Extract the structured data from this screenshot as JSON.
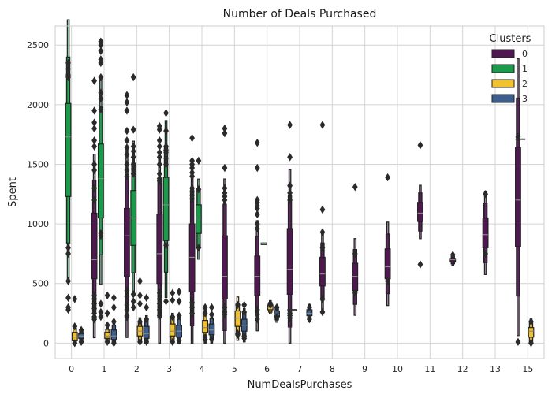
{
  "chart_data": {
    "type": "boxen",
    "title": "Number of Deals Purchased",
    "xlabel": "NumDealsPurchases",
    "ylabel": "Spent",
    "categories": [
      "0",
      "1",
      "2",
      "3",
      "4",
      "5",
      "6",
      "7",
      "8",
      "9",
      "10",
      "11",
      "12",
      "13",
      "15"
    ],
    "ylim": [
      -130,
      2660
    ],
    "yticks": [
      0,
      500,
      1000,
      1500,
      2000,
      2500
    ],
    "grid": true,
    "legend": {
      "title": "Clusters",
      "placement": "top-right"
    },
    "series": [
      {
        "name": "0",
        "color": "#4f1850",
        "boxes": [
          {
            "x": "1",
            "q1": 540,
            "median": 700,
            "q3": 1090,
            "outliers": [
              2200,
              1950,
              1850,
              1800,
              1700,
              1650,
              1500,
              1450,
              1300,
              1200,
              400,
              370,
              330,
              290,
              250,
              220,
              200
            ]
          },
          {
            "x": "2",
            "q1": 560,
            "median": 900,
            "q3": 1130,
            "outliers": [
              2080,
              2020,
              1950,
              1780,
              1700,
              1640,
              1580,
              1500,
              1450,
              1400,
              440,
              390,
              320,
              280,
              230,
              220
            ]
          },
          {
            "x": "3",
            "q1": 500,
            "median": 750,
            "q3": 1080,
            "outliers": [
              1820,
              1790,
              1700,
              1650,
              1600,
              1560,
              1500,
              1420,
              1380,
              1360,
              420,
              370,
              330,
              280,
              230
            ]
          },
          {
            "x": "4",
            "q1": 430,
            "median": 720,
            "q3": 1000,
            "outliers": [
              1720,
              1530,
              1500,
              1470,
              1430,
              1400,
              1300,
              1270,
              1240,
              1210,
              340,
              300,
              250
            ]
          },
          {
            "x": "5",
            "q1": 370,
            "median": 560,
            "q3": 900,
            "outliers": [
              1800,
              1760,
              1470,
              1300,
              1260,
              1230,
              1200,
              300,
              260,
              240
            ]
          },
          {
            "x": "6",
            "q1": 400,
            "median": 560,
            "q3": 730,
            "outliers": [
              1680,
              1470,
              1200,
              1180,
              1150,
              1130,
              1080,
              1000,
              960,
              280,
              240,
              200
            ]
          },
          {
            "x": "7",
            "q1": 410,
            "median": 620,
            "q3": 960,
            "outliers": [
              1830,
              1560,
              1320,
              1260,
              1200,
              250,
              230,
              210
            ]
          },
          {
            "x": "8",
            "q1": 480,
            "median": 580,
            "q3": 720,
            "outliers": [
              1830,
              1120,
              930,
              800,
              370,
              260
            ]
          },
          {
            "x": "9",
            "q1": 440,
            "median": 560,
            "q3": 670,
            "outliers": [
              1310,
              750,
              420
            ]
          },
          {
            "x": "10",
            "q1": 540,
            "median": 640,
            "q3": 790,
            "outliers": [
              1390,
              520
            ]
          },
          {
            "x": "11",
            "q1": 1020,
            "median": 1090,
            "q3": 1180,
            "outliers": [
              1660,
              660
            ]
          },
          {
            "x": "12",
            "q1": 680,
            "median": 700,
            "q3": 710,
            "outliers": [
              740
            ]
          },
          {
            "x": "13",
            "q1": 800,
            "median": 910,
            "q3": 1050,
            "outliers": [
              1250,
              750
            ]
          },
          {
            "x": "15",
            "q1": 810,
            "median": 1200,
            "q3": 1640,
            "outliers": [
              1730,
              10
            ]
          }
        ]
      },
      {
        "name": "1",
        "color": "#1a9b4a",
        "boxes": [
          {
            "x": "0",
            "q1": 1230,
            "median": 1730,
            "q3": 2010,
            "outliers": [
              2350,
              2300,
              2250,
              2230,
              800,
              750,
              520,
              380,
              300,
              280
            ]
          },
          {
            "x": "1",
            "q1": 1050,
            "median": 1380,
            "q3": 1670,
            "outliers": [
              2530,
              2500,
              2450,
              2380,
              2350,
              2230,
              2100,
              2050,
              1960,
              920,
              900,
              330,
              260,
              220
            ]
          },
          {
            "x": "2",
            "q1": 820,
            "median": 1050,
            "q3": 1280,
            "outliers": [
              2230,
              1790,
              1650,
              1610,
              1560,
              1500,
              1460,
              1420,
              410,
              350,
              300
            ]
          },
          {
            "x": "3",
            "q1": 860,
            "median": 1160,
            "q3": 1390,
            "outliers": [
              1930,
              1780,
              1650,
              1620,
              1600,
              1550,
              1500,
              820,
              350
            ]
          },
          {
            "x": "4",
            "q1": 920,
            "median": 1050,
            "q3": 1160,
            "outliers": [
              1530,
              1290,
              800
            ]
          },
          {
            "x": "5",
            "q1": null,
            "median": null,
            "q3": null,
            "outliers": []
          },
          {
            "x": "6",
            "q1": 840,
            "median": 840,
            "q3": 840,
            "outliers": []
          }
        ]
      },
      {
        "name": "2",
        "color": "#f2c12e",
        "boxes": [
          {
            "x": "0",
            "q1": 20,
            "median": 50,
            "q3": 90,
            "outliers": [
              140,
              370,
              0
            ]
          },
          {
            "x": "1",
            "q1": 40,
            "median": 60,
            "q3": 90,
            "outliers": [
              150,
              250,
              400,
              10
            ]
          },
          {
            "x": "2",
            "q1": 60,
            "median": 100,
            "q3": 140,
            "outliers": [
              180,
              330,
              400,
              520,
              10
            ]
          },
          {
            "x": "3",
            "q1": 60,
            "median": 100,
            "q3": 160,
            "outliers": [
              220,
              360,
              420,
              10
            ]
          },
          {
            "x": "4",
            "q1": 90,
            "median": 130,
            "q3": 190,
            "outliers": [
              250,
              300,
              50,
              30
            ]
          },
          {
            "x": "5",
            "q1": 140,
            "median": 210,
            "q3": 270,
            "outliers": [
              320,
              80,
              70
            ]
          },
          {
            "x": "6",
            "q1": 280,
            "median": 300,
            "q3": 320,
            "outliers": [
              330,
              320
            ]
          },
          {
            "x": "15",
            "q1": 50,
            "median": 100,
            "q3": 130,
            "outliers": [
              180,
              0
            ]
          }
        ]
      },
      {
        "name": "3",
        "color": "#3b5e8f",
        "boxes": [
          {
            "x": "0",
            "q1": 40,
            "median": 60,
            "q3": 80,
            "outliers": [
              110,
              10
            ]
          },
          {
            "x": "1",
            "q1": 30,
            "median": 60,
            "q3": 110,
            "outliers": [
              180,
              300,
              380,
              0
            ]
          },
          {
            "x": "2",
            "q1": 40,
            "median": 80,
            "q3": 140,
            "outliers": [
              200,
              300,
              380,
              10
            ]
          },
          {
            "x": "3",
            "q1": 50,
            "median": 100,
            "q3": 150,
            "outliers": [
              230,
              350,
              430,
              20
            ]
          },
          {
            "x": "4",
            "q1": 70,
            "median": 110,
            "q3": 160,
            "outliers": [
              240,
              300,
              30
            ]
          },
          {
            "x": "5",
            "q1": 100,
            "median": 150,
            "q3": 200,
            "outliers": [
              260,
              320,
              60,
              40
            ]
          },
          {
            "x": "6",
            "q1": 220,
            "median": 240,
            "q3": 270,
            "outliers": [
              300,
              220
            ]
          },
          {
            "x": "7",
            "q1": 230,
            "median": 250,
            "q3": 280,
            "outliers": [
              300,
              200
            ]
          }
        ]
      }
    ],
    "extra_medians": [
      {
        "series": "0",
        "x": "7",
        "value": 280,
        "note_none": true
      },
      {
        "series": "0",
        "x": "15",
        "value": 1710,
        "note_none": true
      }
    ]
  }
}
